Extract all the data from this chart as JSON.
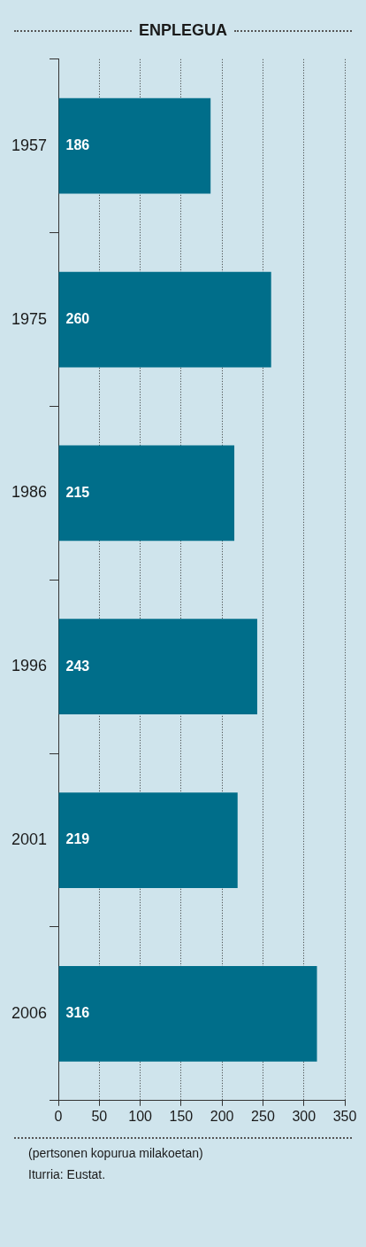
{
  "chart_data": {
    "type": "bar",
    "orientation": "horizontal",
    "title": "ENPLEGUA",
    "categories": [
      "1957",
      "1975",
      "1986",
      "1996",
      "2001",
      "2006"
    ],
    "values": [
      186,
      260,
      215,
      243,
      219,
      316
    ],
    "color": "#006e8a",
    "xlim": [
      0,
      350
    ],
    "xticks": [
      0,
      50,
      100,
      150,
      200,
      250,
      300,
      350
    ],
    "grid": "x",
    "data_labels": true,
    "annotations": [
      "(pertsonen kopurua milakoetan)",
      "Iturria: Eustat."
    ]
  }
}
